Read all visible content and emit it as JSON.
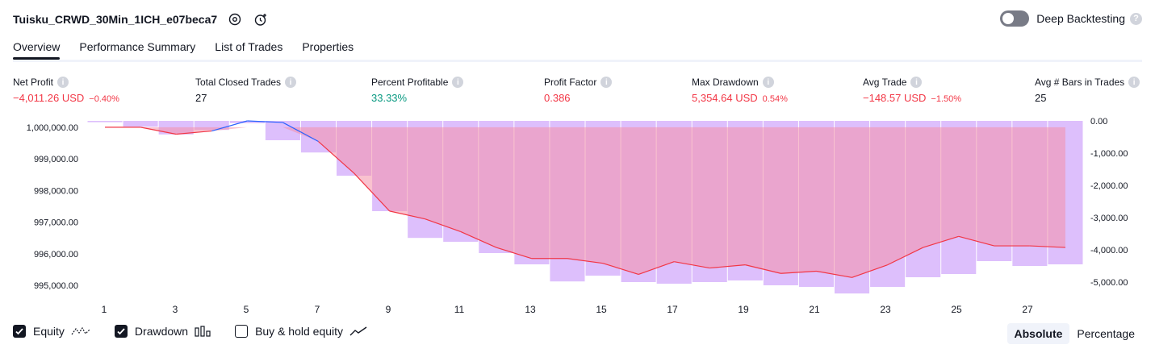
{
  "header": {
    "title": "Tuisku_CRWD_30Min_1ICH_e07beca7",
    "deep_backtesting_label": "Deep Backtesting",
    "deep_backtesting_enabled": false,
    "help_glyph": "?"
  },
  "tabs": [
    {
      "label": "Overview",
      "active": true
    },
    {
      "label": "Performance Summary",
      "active": false
    },
    {
      "label": "List of Trades",
      "active": false
    },
    {
      "label": "Properties",
      "active": false
    }
  ],
  "metrics": {
    "info_glyph": "i",
    "net_profit": {
      "label": "Net Profit",
      "value": "−4,011.26 USD",
      "sub": "−0.40%"
    },
    "total_closed_trades": {
      "label": "Total Closed Trades",
      "value": "27"
    },
    "percent_profitable": {
      "label": "Percent Profitable",
      "value": "33.33%"
    },
    "profit_factor": {
      "label": "Profit Factor",
      "value": "0.386"
    },
    "max_drawdown": {
      "label": "Max Drawdown",
      "value": "5,354.64 USD",
      "sub": "0.54%"
    },
    "avg_trade": {
      "label": "Avg Trade",
      "value": "−148.57 USD",
      "sub": "−1.50%"
    },
    "avg_bars": {
      "label": "Avg # Bars in Trades",
      "value": "25"
    }
  },
  "chart_data": {
    "type": "line",
    "x_ticks": [
      "1",
      "3",
      "5",
      "7",
      "9",
      "11",
      "13",
      "15",
      "17",
      "19",
      "21",
      "23",
      "25",
      "27"
    ],
    "y_left_ticks": [
      "1,000,000.00",
      "999,000.00",
      "998,000.00",
      "997,000.00",
      "996,000.00",
      "995,000.00"
    ],
    "y_right_ticks": [
      "0.00",
      "-1,000.00",
      "-2,000.00",
      "-3,000.00",
      "-4,000.00",
      "-5,000.00"
    ],
    "y_left_range": [
      994800,
      1000200
    ],
    "y_right_range": [
      -5300,
      0
    ],
    "series": [
      {
        "name": "Equity",
        "color": "#f23645",
        "above_initial_color": "#2962ff",
        "x": [
          1,
          2,
          3,
          4,
          5,
          6,
          7,
          8,
          9,
          10,
          11,
          12,
          13,
          14,
          15,
          16,
          17,
          18,
          19,
          20,
          21,
          22,
          23,
          24,
          25,
          26,
          27,
          28
        ],
        "values": [
          1000000,
          1000000,
          999780,
          999880,
          1000200,
          1000150,
          999550,
          998550,
          997350,
          997100,
          996700,
          996200,
          995850,
          995850,
          995700,
          995350,
          995750,
          995550,
          995650,
          995380,
          995450,
          995250,
          995650,
          996200,
          996550,
          996250,
          996250,
          996200
        ]
      },
      {
        "name": "Drawdown",
        "color": "#d7b4fb",
        "x": [
          1,
          2,
          3,
          4,
          5,
          6,
          7,
          8,
          9,
          10,
          11,
          12,
          13,
          14,
          15,
          16,
          17,
          18,
          19,
          20,
          21,
          22,
          23,
          24,
          25,
          26,
          27,
          28
        ],
        "values": [
          -40,
          -180,
          -420,
          -280,
          -70,
          -600,
          -980,
          -1700,
          -2800,
          -3630,
          -3750,
          -4100,
          -4450,
          -4980,
          -4800,
          -5000,
          -5050,
          -5000,
          -4950,
          -5100,
          -5150,
          -5354,
          -5150,
          -4850,
          -4750,
          -4350,
          -4500,
          -4450
        ]
      }
    ],
    "legend": [
      {
        "label": "Equity",
        "checked": true,
        "icon": "equity-line-icon"
      },
      {
        "label": "Drawdown",
        "checked": true,
        "icon": "drawdown-bars-icon"
      },
      {
        "label": "Buy & hold equity",
        "checked": false,
        "icon": "buy-hold-line-icon"
      }
    ]
  },
  "modes": [
    {
      "label": "Absolute",
      "active": true
    },
    {
      "label": "Percentage",
      "active": false
    }
  ]
}
